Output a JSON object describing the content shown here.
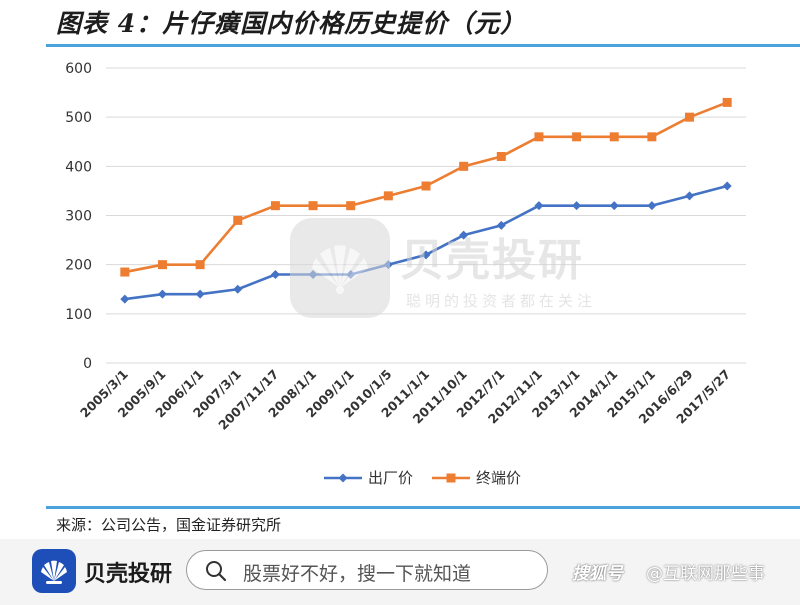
{
  "header": {
    "title": "图表 4：片仔癀国内价格历史提价（元）"
  },
  "source": "来源：公司公告，国金证券研究所",
  "watermark": {
    "title": "贝壳投研",
    "slogan": "聪明的投资者都在关注"
  },
  "footer": {
    "brand": "贝壳投研",
    "search_placeholder": "股票好不好，搜一下就知道",
    "credit_logo": "搜狐号",
    "credit_text": "@互联网那些事"
  },
  "colors": {
    "accent": "#4aa3dc",
    "series1": "#4472c4",
    "series2": "#ed7d31",
    "brand": "#1e4fb8"
  },
  "chart_data": {
    "type": "line",
    "categories": [
      "2005/3/1",
      "2005/9/1",
      "2006/1/1",
      "2007/3/1",
      "2007/11/17",
      "2008/1/1",
      "2009/1/1",
      "2010/1/5",
      "2011/1/1",
      "2011/10/1",
      "2012/7/1",
      "2012/11/1",
      "2013/1/1",
      "2014/1/1",
      "2015/1/1",
      "2016/6/29",
      "2017/5/27"
    ],
    "series": [
      {
        "name": "出厂价",
        "color": "#4472c4",
        "marker": "diamond",
        "values": [
          130,
          140,
          140,
          150,
          180,
          180,
          180,
          200,
          220,
          260,
          280,
          320,
          320,
          320,
          320,
          340,
          360
        ]
      },
      {
        "name": "终端价",
        "color": "#ed7d31",
        "marker": "square",
        "values": [
          185,
          200,
          200,
          290,
          320,
          320,
          320,
          340,
          360,
          400,
          420,
          460,
          460,
          460,
          460,
          500,
          530
        ]
      }
    ],
    "title": "",
    "xlabel": "",
    "ylabel": "",
    "ylim": [
      0,
      600
    ],
    "yticks": [
      0,
      100,
      200,
      300,
      400,
      500,
      600
    ],
    "grid": true,
    "legend_position": "bottom"
  }
}
